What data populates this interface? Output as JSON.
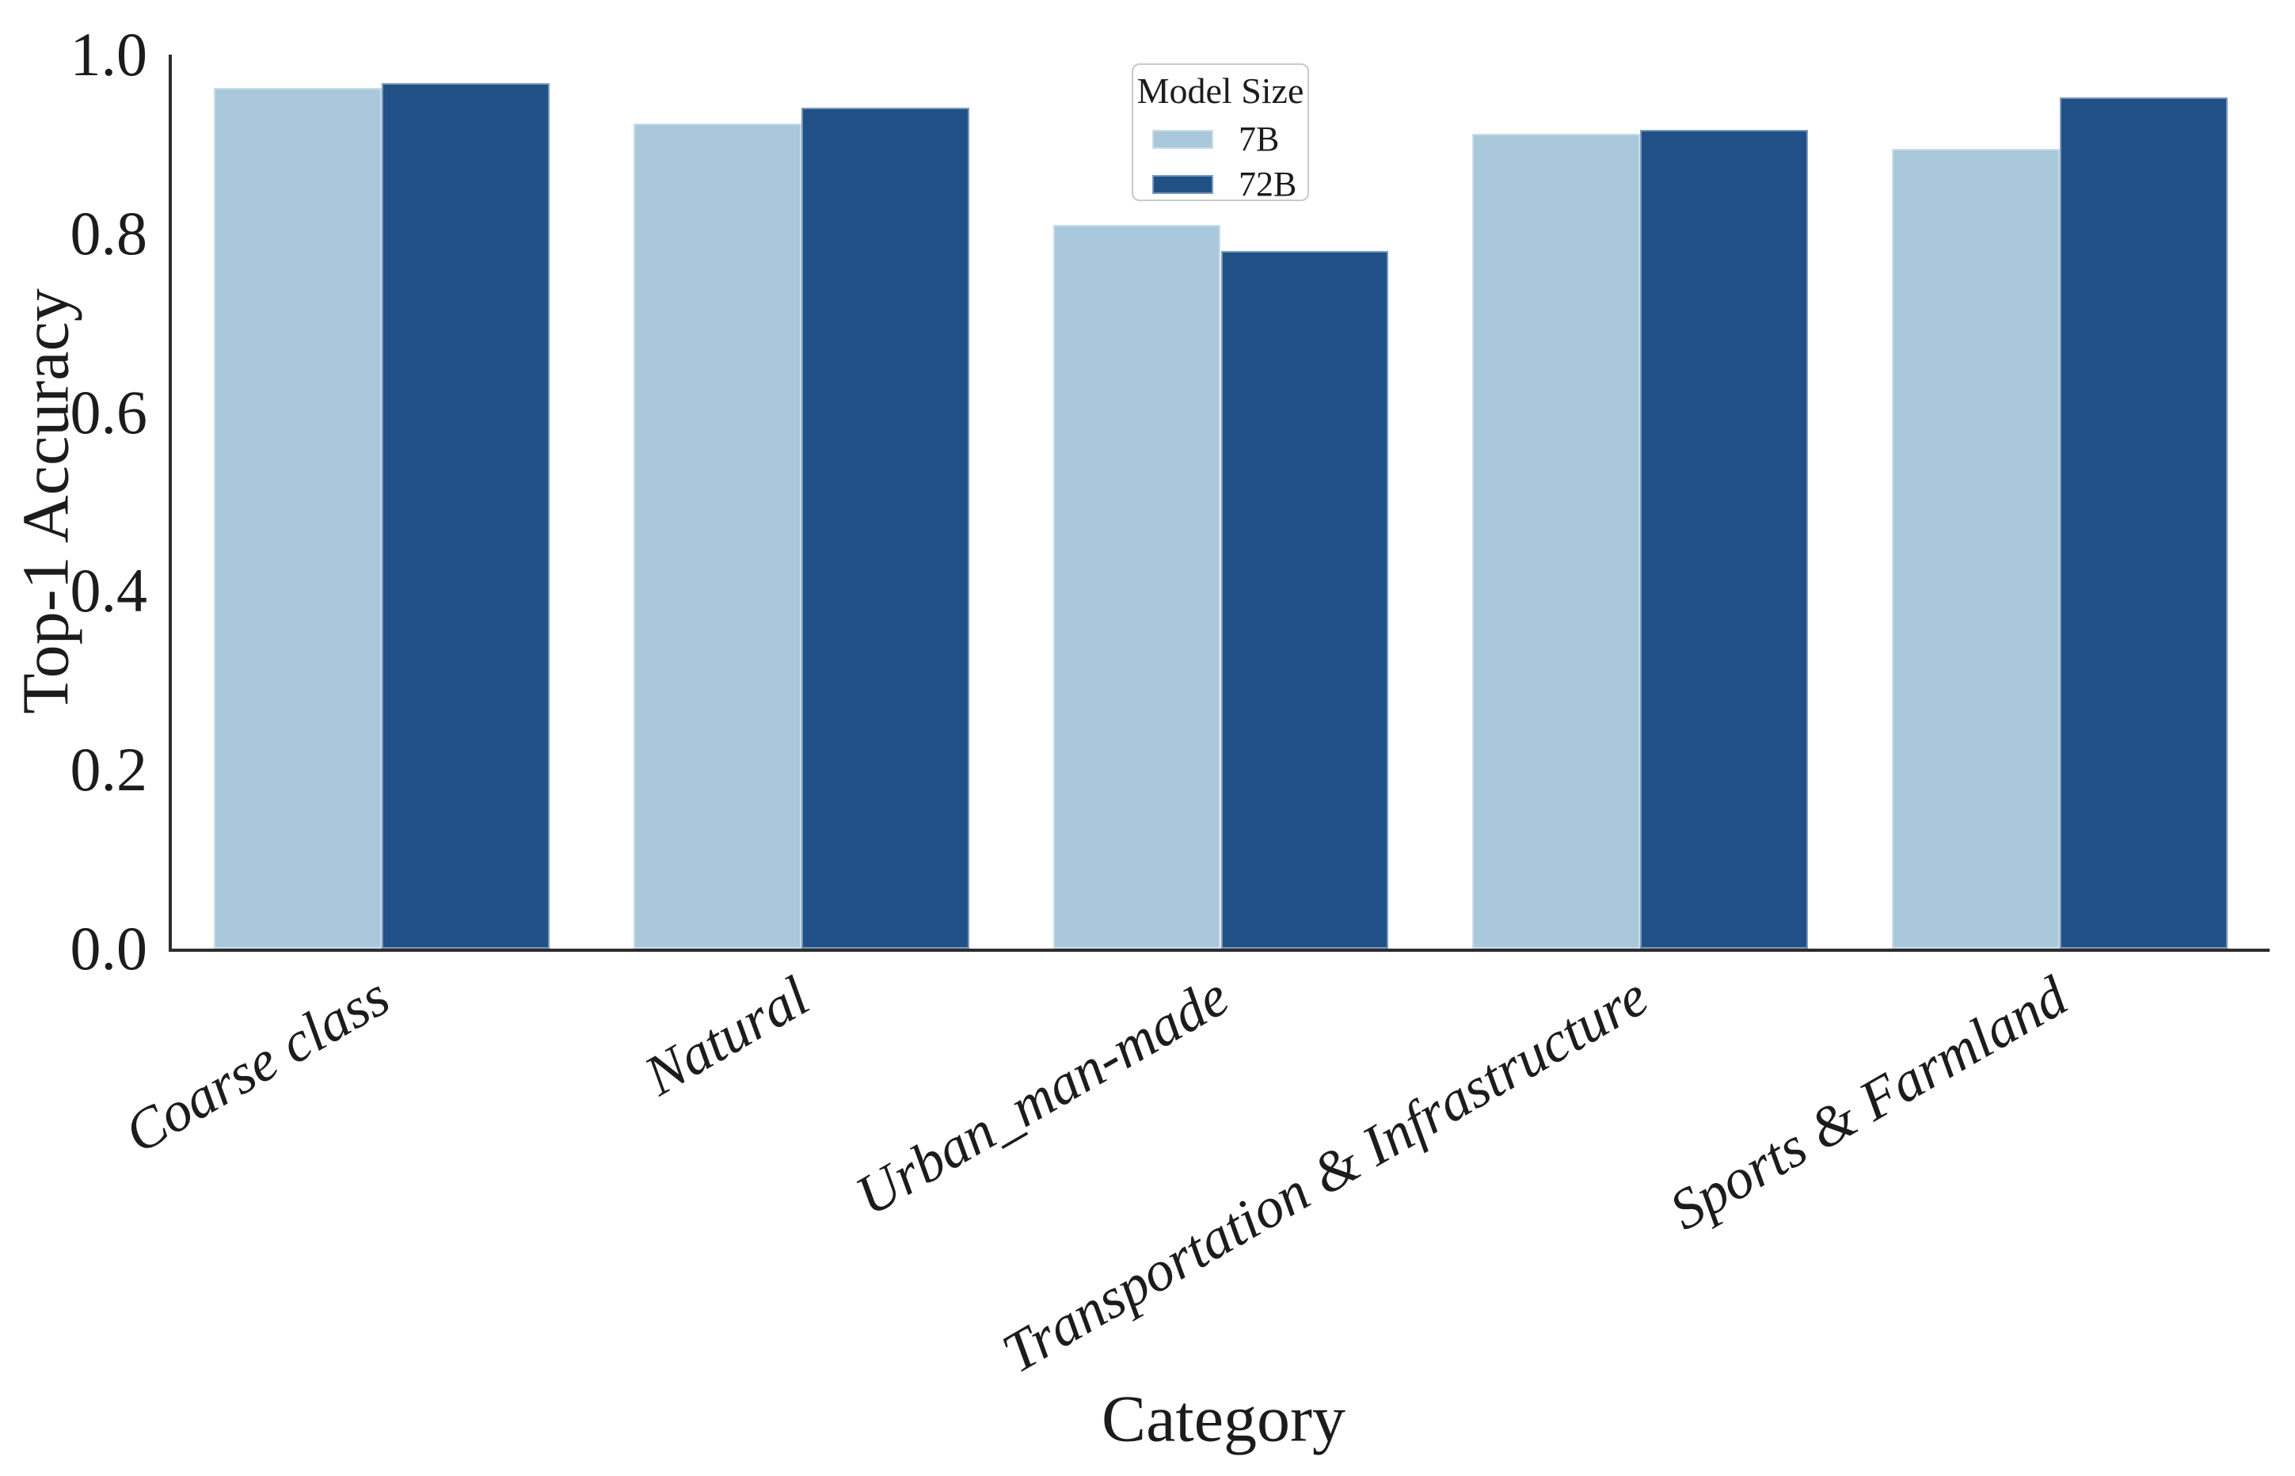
{
  "figure": {
    "background": "#ffffff",
    "text_color": "#1c1c1c",
    "spine_color": "#2d2d2d"
  },
  "chart_data": {
    "type": "bar",
    "title": "",
    "xlabel": "Category",
    "ylabel": "Top-1 Accuracy",
    "ylim": [
      0.0,
      1.0
    ],
    "grid": false,
    "yticks": [
      {
        "label": "0.0",
        "value": 0.0
      },
      {
        "label": "0.2",
        "value": 0.2
      },
      {
        "label": "0.4",
        "value": 0.4
      },
      {
        "label": "0.6",
        "value": 0.6
      },
      {
        "label": "0.8",
        "value": 0.8
      },
      {
        "label": "1.0",
        "value": 1.0
      }
    ],
    "categories": [
      "Coarse class",
      "Natural",
      "Urban_man-made",
      "Transportation & Infrastructure",
      "Sports & Farmland"
    ],
    "series": [
      {
        "name": "7B",
        "color": "#a9c8db",
        "edge_color": "#cadcea",
        "values": [
          0.963,
          0.923,
          0.81,
          0.911,
          0.895
        ]
      },
      {
        "name": "72B",
        "color": "#205086",
        "edge_color": "#7b98bd",
        "values": [
          0.968,
          0.941,
          0.78,
          0.916,
          0.952
        ]
      }
    ],
    "legend": {
      "title": "Model Size",
      "position": "upper center"
    }
  }
}
